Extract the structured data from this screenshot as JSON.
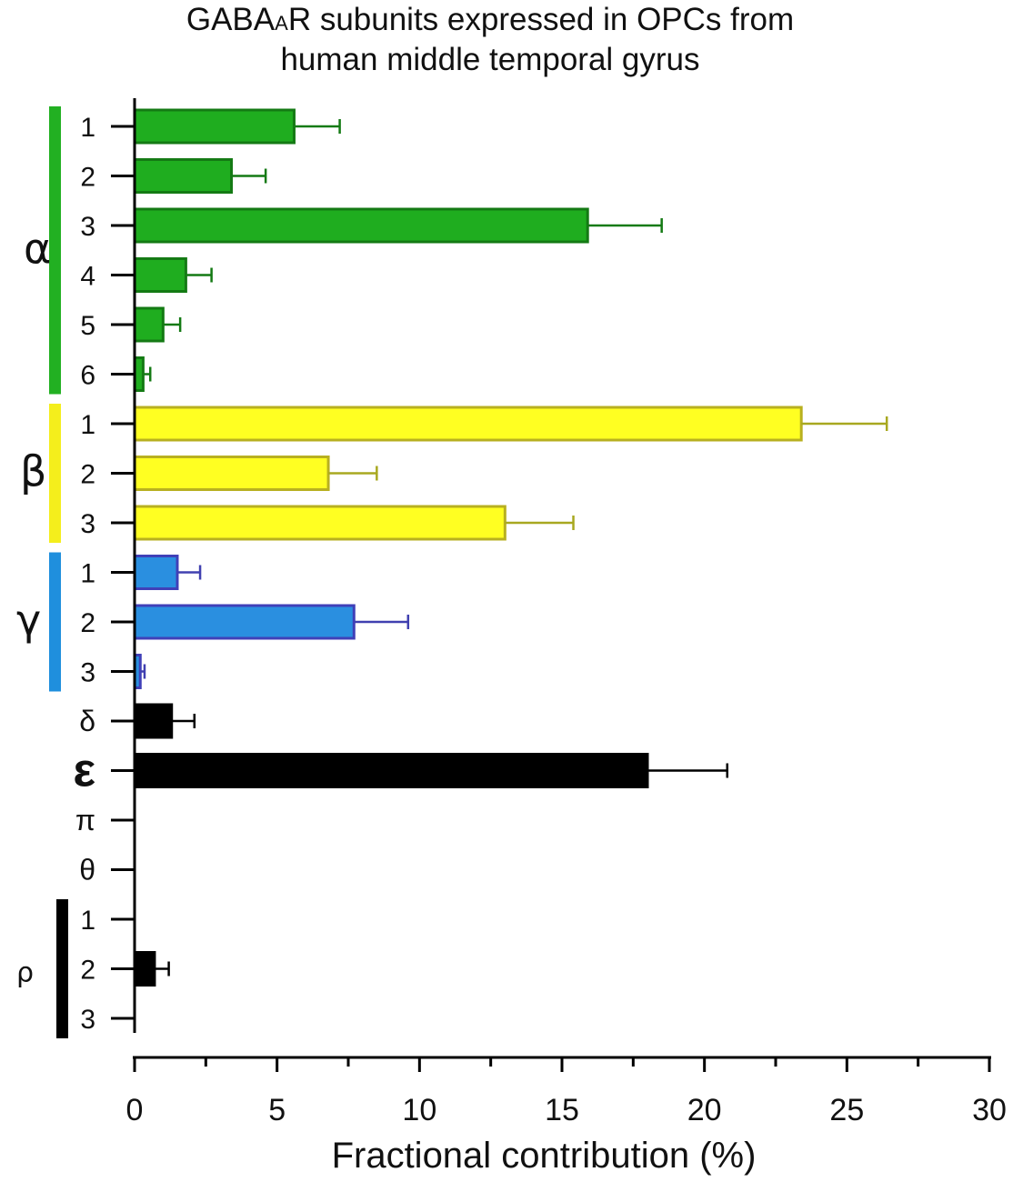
{
  "chart_data": {
    "type": "bar",
    "orientation": "horizontal",
    "title_line1_pre": "GABA",
    "title_line1_sub": "A",
    "title_line1_post": "R subunits expressed in OPCs from",
    "title_line2": "human middle temporal gyrus",
    "xlabel": "Fractional contribution (%)",
    "xlim": [
      0,
      30
    ],
    "xticks": [
      "0",
      "5",
      "10",
      "15",
      "20",
      "25",
      "30"
    ],
    "grid": false,
    "colors": {
      "alpha": "#1fad1f",
      "beta": "#ffff22",
      "gamma": "#2a8fe0",
      "other": "#000000"
    },
    "groups": [
      {
        "label": "α",
        "color": "#22b022",
        "rows": [
          0,
          5
        ]
      },
      {
        "label": "β",
        "color": "#f4ee1c",
        "rows": [
          6,
          8
        ]
      },
      {
        "label": "γ",
        "color": "#1f8fdd",
        "rows": [
          9,
          11
        ]
      },
      {
        "label": "ρ",
        "color": "#000000",
        "rows": [
          16,
          18
        ]
      }
    ],
    "bars": [
      {
        "label": "1",
        "group": "alpha",
        "value": 5.6,
        "error": 1.6
      },
      {
        "label": "2",
        "group": "alpha",
        "value": 3.4,
        "error": 1.2
      },
      {
        "label": "3",
        "group": "alpha",
        "value": 15.9,
        "error": 2.6
      },
      {
        "label": "4",
        "group": "alpha",
        "value": 1.8,
        "error": 0.9
      },
      {
        "label": "5",
        "group": "alpha",
        "value": 1.0,
        "error": 0.6
      },
      {
        "label": "6",
        "group": "alpha",
        "value": 0.3,
        "error": 0.25
      },
      {
        "label": "1",
        "group": "beta",
        "value": 23.4,
        "error": 3.0
      },
      {
        "label": "2",
        "group": "beta",
        "value": 6.8,
        "error": 1.7
      },
      {
        "label": "3",
        "group": "beta",
        "value": 13.0,
        "error": 2.4
      },
      {
        "label": "1",
        "group": "gamma",
        "value": 1.5,
        "error": 0.8
      },
      {
        "label": "2",
        "group": "gamma",
        "value": 7.7,
        "error": 1.9
      },
      {
        "label": "3",
        "group": "gamma",
        "value": 0.2,
        "error": 0.15
      },
      {
        "label": "δ",
        "group": "other",
        "value": 1.3,
        "error": 0.8
      },
      {
        "label": "ε",
        "group": "other",
        "value": 18.0,
        "error": 2.8
      },
      {
        "label": "π",
        "group": "other",
        "value": 0,
        "error": 0
      },
      {
        "label": "θ",
        "group": "other",
        "value": 0,
        "error": 0
      },
      {
        "label": "1",
        "group": "other",
        "value": 0,
        "error": 0
      },
      {
        "label": "2",
        "group": "other",
        "value": 0.7,
        "error": 0.5
      },
      {
        "label": "3",
        "group": "other",
        "value": 0,
        "error": 0
      }
    ]
  }
}
